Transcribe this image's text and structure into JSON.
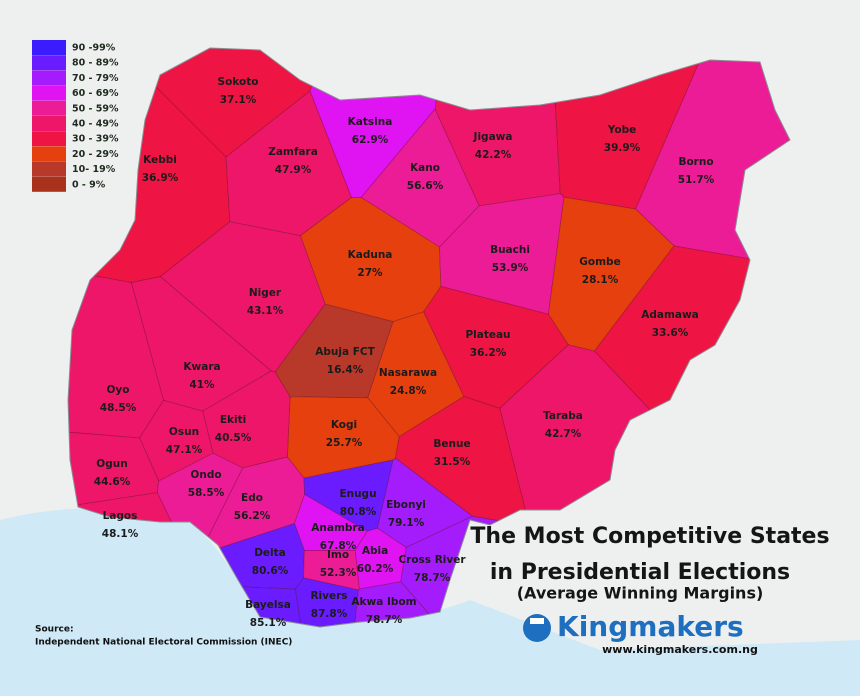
{
  "legend": [
    {
      "label": "90 -99%",
      "color": "#3b1cff"
    },
    {
      "label": "80 - 89%",
      "color": "#6a1cff"
    },
    {
      "label": "70 - 79%",
      "color": "#a41cfb"
    },
    {
      "label": "60 - 69%",
      "color": "#e014f2"
    },
    {
      "label": "50 - 59%",
      "color": "#ec1c96"
    },
    {
      "label": "40 - 49%",
      "color": "#ee1668"
    },
    {
      "label": "30 - 39%",
      "color": "#ee1444"
    },
    {
      "label": "20 - 29%",
      "color": "#e6400f"
    },
    {
      "label": "10- 19%",
      "color": "#b8392a"
    },
    {
      "label": "0 - 9%",
      "color": "#a8321c"
    }
  ],
  "states": [
    {
      "name": "Sokoto",
      "value": 37.1,
      "value_label": "37.1%"
    },
    {
      "name": "Kebbi",
      "value": 36.9,
      "value_label": "36.9%"
    },
    {
      "name": "Zamfara",
      "value": 47.9,
      "value_label": "47.9%"
    },
    {
      "name": "Katsina",
      "value": 62.9,
      "value_label": "62.9%"
    },
    {
      "name": "Kano",
      "value": 56.6,
      "value_label": "56.6%"
    },
    {
      "name": "Jigawa",
      "value": 42.2,
      "value_label": "42.2%"
    },
    {
      "name": "Yobe",
      "value": 39.9,
      "value_label": "39.9%"
    },
    {
      "name": "Borno",
      "value": 51.7,
      "value_label": "51.7%"
    },
    {
      "name": "Kaduna",
      "value": 27,
      "value_label": "27%"
    },
    {
      "name": "Buachi",
      "value": 53.9,
      "value_label": "53.9%"
    },
    {
      "name": "Gombe",
      "value": 28.1,
      "value_label": "28.1%"
    },
    {
      "name": "Adamawa",
      "value": 33.6,
      "value_label": "33.6%"
    },
    {
      "name": "Niger",
      "value": 43.1,
      "value_label": "43.1%"
    },
    {
      "name": "Abuja FCT",
      "value": 16.4,
      "value_label": "16.4%"
    },
    {
      "name": "Nasarawa",
      "value": 24.8,
      "value_label": "24.8%"
    },
    {
      "name": "Plateau",
      "value": 36.2,
      "value_label": "36.2%"
    },
    {
      "name": "Kwara",
      "value": 41,
      "value_label": "41%"
    },
    {
      "name": "Oyo",
      "value": 48.5,
      "value_label": "48.5%"
    },
    {
      "name": "Taraba",
      "value": 42.7,
      "value_label": "42.7%"
    },
    {
      "name": "Kogi",
      "value": 25.7,
      "value_label": "25.7%"
    },
    {
      "name": "Benue",
      "value": 31.5,
      "value_label": "31.5%"
    },
    {
      "name": "Ekiti",
      "value": 40.5,
      "value_label": "40.5%"
    },
    {
      "name": "Osun",
      "value": 47.1,
      "value_label": "47.1%"
    },
    {
      "name": "Ogun",
      "value": 44.6,
      "value_label": "44.6%"
    },
    {
      "name": "Ondo",
      "value": 58.5,
      "value_label": "58.5%"
    },
    {
      "name": "Edo",
      "value": 56.2,
      "value_label": "56.2%"
    },
    {
      "name": "Lagos",
      "value": 48.1,
      "value_label": "48.1%"
    },
    {
      "name": "Enugu",
      "value": 80.8,
      "value_label": "80.8%"
    },
    {
      "name": "Ebonyi",
      "value": 79.1,
      "value_label": "79.1%"
    },
    {
      "name": "Anambra",
      "value": 67.8,
      "value_label": "67.8%"
    },
    {
      "name": "Delta",
      "value": 80.6,
      "value_label": "80.6%"
    },
    {
      "name": "Imo",
      "value": 52.3,
      "value_label": "52.3%"
    },
    {
      "name": "Abia",
      "value": 60.2,
      "value_label": "60.2%"
    },
    {
      "name": "Cross River",
      "value": 78.7,
      "value_label": "78.7%"
    },
    {
      "name": "Bayelsa",
      "value": 85.1,
      "value_label": "85.1%"
    },
    {
      "name": "Rivers",
      "value": 87.8,
      "value_label": "87.8%"
    },
    {
      "name": "Akwa Ibom",
      "value": 78.7,
      "value_label": "78.7%"
    }
  ],
  "title": "The Most Competitive States",
  "title_line2": "in Presidential Elections",
  "subtitle": "(Average Winning Margins)",
  "source": {
    "label": "Source:",
    "text": "Independent National Electoral Commission (INEC)"
  },
  "brand": {
    "name": "Kingmakers",
    "url": "www.kingmakers.com.ng"
  }
}
